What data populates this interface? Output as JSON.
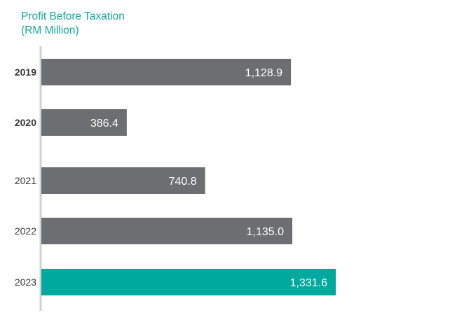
{
  "chart_data": {
    "type": "bar",
    "orientation": "horizontal",
    "title": "Profit Before Taxation",
    "subtitle": "(RM Million)",
    "categories": [
      "2019",
      "2020",
      "2021",
      "2022",
      "2023"
    ],
    "values": [
      1128.9,
      386.4,
      740.8,
      1135.0,
      1331.6
    ],
    "value_labels": [
      "1,128.9",
      "386.4",
      "740.8",
      "1,135.0",
      "1,331.6"
    ],
    "bold_categories": [
      "2019",
      "2020"
    ],
    "xlim": [
      0,
      1331.6
    ],
    "grid": false,
    "colors": {
      "default_bar": "#6d6e71",
      "highlight_bar": "#00a99d",
      "highlight_category": "2023",
      "axis": "#cfd1d2",
      "title": "#13a89e"
    }
  }
}
